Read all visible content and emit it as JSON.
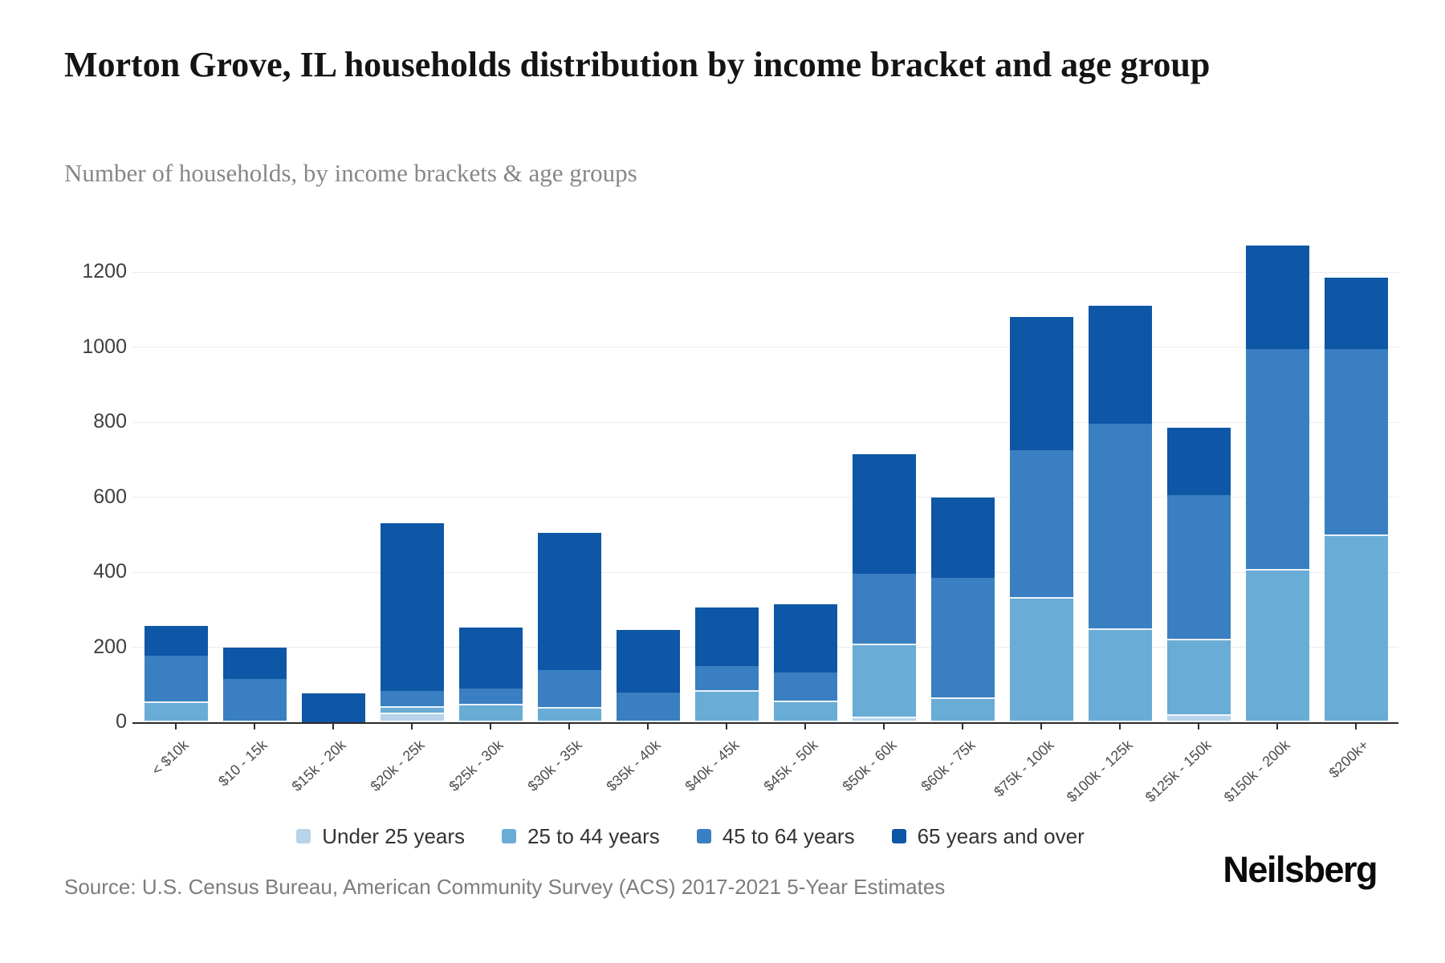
{
  "header": {
    "title": "Morton Grove, IL households distribution by income bracket and age group",
    "subtitle": "Number of households, by income brackets & age groups"
  },
  "chart_data": {
    "type": "bar",
    "stacked": true,
    "title": "Morton Grove, IL households distribution by income bracket and age group",
    "subtitle": "Number of households, by income brackets & age groups",
    "categories": [
      "< $10k",
      "$10 - 15k",
      "$15k - 20k",
      "$20k - 25k",
      "$25k - 30k",
      "$30k - 35k",
      "$35k - 40k",
      "$40k - 45k",
      "$45k - 50k",
      "$50k - 60k",
      "$60k - 75k",
      "$75k - 100k",
      "$100k - 125k",
      "$125k - 150k",
      "$150k - 200k",
      "$200k+"
    ],
    "series": [
      {
        "name": "Under 25 years",
        "color": "#b7d4ea",
        "values": [
          0,
          0,
          0,
          21,
          0,
          0,
          0,
          0,
          0,
          10,
          0,
          0,
          0,
          18,
          0,
          0
        ]
      },
      {
        "name": "25 to 44 years",
        "color": "#69acd6",
        "values": [
          52,
          0,
          0,
          17,
          45,
          36,
          0,
          82,
          53,
          195,
          62,
          330,
          245,
          200,
          405,
          497
        ]
      },
      {
        "name": "45 to 64 years",
        "color": "#3a7fc1",
        "values": [
          125,
          115,
          0,
          45,
          44,
          104,
          80,
          68,
          80,
          190,
          322,
          395,
          550,
          387,
          590,
          498
        ]
      },
      {
        "name": "65 years and over",
        "color": "#0e56a6",
        "values": [
          80,
          85,
          78,
          447,
          164,
          365,
          167,
          155,
          182,
          320,
          216,
          355,
          315,
          180,
          275,
          190
        ]
      }
    ],
    "totals": [
      257,
      200,
      78,
      530,
      253,
      505,
      247,
      305,
      315,
      715,
      600,
      1080,
      1110,
      785,
      1270,
      1185
    ],
    "ylabel": "",
    "xlabel": "",
    "ylim": [
      0,
      1200
    ],
    "yticks": [
      0,
      200,
      400,
      600,
      800,
      1000,
      1200
    ],
    "grid": true,
    "legend_position": "bottom"
  },
  "footer": {
    "source": "Source: U.S. Census Bureau, American Community Survey (ACS) 2017-2021 5-Year Estimates",
    "brand": "Neilsberg"
  }
}
